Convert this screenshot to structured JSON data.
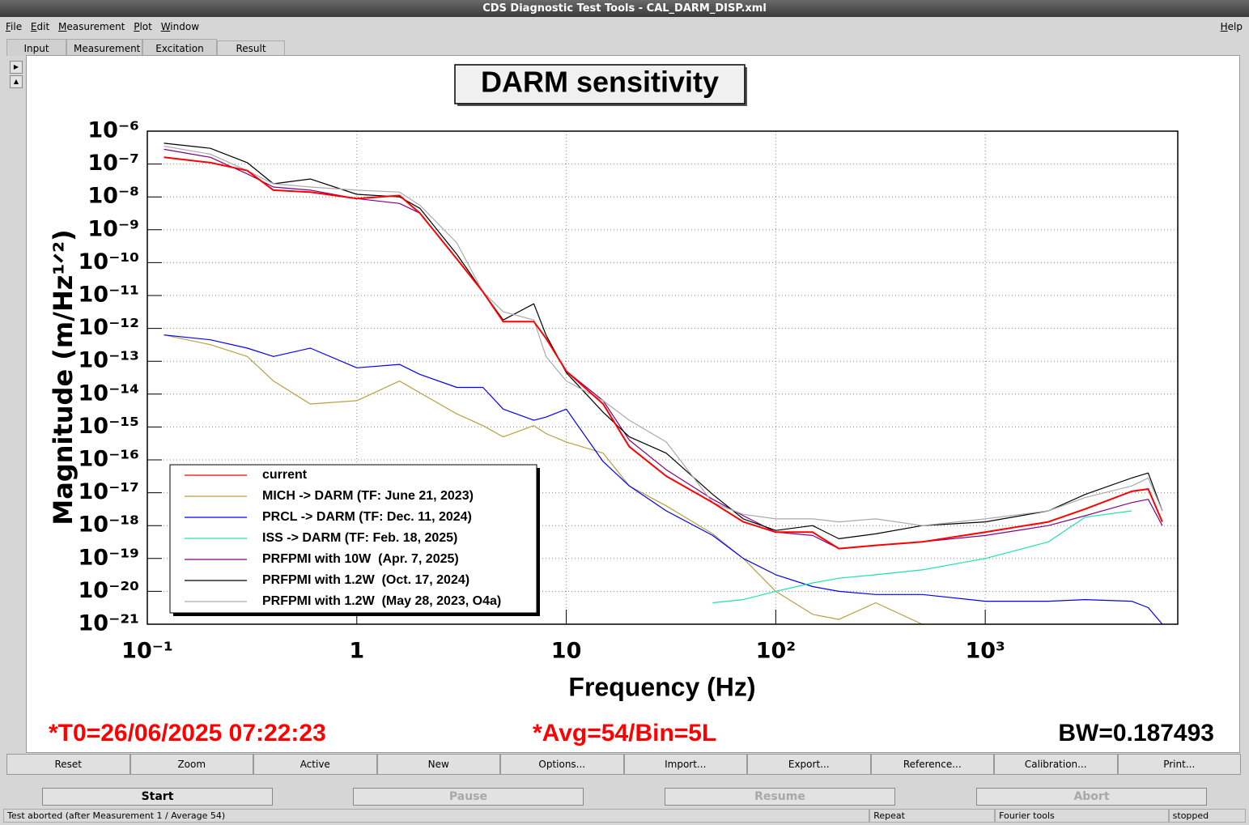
{
  "window": {
    "title": "CDS Diagnostic Test Tools - CAL_DARM_DISP.xml"
  },
  "menu": [
    "File",
    "Edit",
    "Measurement",
    "Plot",
    "Window"
  ],
  "help": "Help",
  "tabs": [
    "Input",
    "Measurement",
    "Excitation",
    "Result"
  ],
  "chart_data": {
    "type": "line",
    "title": "DARM sensitivity",
    "xlabel": "Frequency (Hz)",
    "ylabel": "Magnitude (m/Hz¹ᐟ²)",
    "xscale": "log",
    "yscale": "log",
    "grid": true,
    "legend": "lower left",
    "xlim": [
      0.1,
      8300
    ],
    "ylim": [
      1e-21,
      1e-06
    ],
    "xticks": [
      {
        "value": 0.1,
        "label": "10⁻¹"
      },
      1,
      10,
      {
        "value": 100,
        "label": "10²"
      },
      {
        "value": 1000,
        "label": "10³"
      }
    ],
    "yticks": [
      {
        "value": 1e-06,
        "label": "10⁻⁶"
      },
      {
        "value": 1e-07,
        "label": "10⁻⁷"
      },
      {
        "value": 1e-08,
        "label": "10⁻⁸"
      },
      {
        "value": 1e-09,
        "label": "10⁻⁹"
      },
      {
        "value": 1e-10,
        "label": "10⁻¹⁰"
      },
      {
        "value": 1e-11,
        "label": "10⁻¹¹"
      },
      {
        "value": 1e-12,
        "label": "10⁻¹²"
      },
      {
        "value": 1e-13,
        "label": "10⁻¹³"
      },
      {
        "value": 1e-14,
        "label": "10⁻¹⁴"
      },
      {
        "value": 1e-15,
        "label": "10⁻¹⁵"
      },
      {
        "value": 1e-16,
        "label": "10⁻¹⁶"
      },
      {
        "value": 1e-17,
        "label": "10⁻¹⁷"
      },
      {
        "value": 1e-18,
        "label": "10⁻¹⁸"
      },
      {
        "value": 1e-19,
        "label": "10⁻¹⁹"
      },
      {
        "value": 1e-20,
        "label": "10⁻²⁰"
      },
      {
        "value": 1e-21,
        "label": "10⁻²¹"
      }
    ],
    "x": [
      0.12,
      0.2,
      0.3,
      0.4,
      0.6,
      1,
      1.6,
      2,
      3,
      4,
      5,
      7,
      8,
      10,
      15,
      20,
      30,
      50,
      70,
      100,
      150,
      200,
      300,
      500,
      1000,
      2000,
      3000,
      5000,
      6000,
      7000
    ],
    "series": [
      {
        "name": "current",
        "color": "#ff0000",
        "values": [
          1.6e-07,
          1.1e-07,
          6.3e-08,
          1.6e-08,
          1.4e-08,
          8.9e-09,
          1.1e-08,
          3.2e-09,
          1.3e-10,
          1.3e-11,
          1.6e-12,
          1.6e-12,
          5e-13,
          5e-14,
          5e-15,
          2.5e-16,
          3.2e-17,
          5e-18,
          1.3e-18,
          6.3e-19,
          6.3e-19,
          2e-19,
          2.5e-19,
          3.2e-19,
          6.3e-19,
          1.3e-18,
          3.2e-18,
          1.1e-17,
          1.3e-17,
          1.3e-18
        ]
      },
      {
        "name": "MICH -> DARM (TF: June 21, 2023)",
        "color": "#b8a040",
        "values": [
          6.3e-13,
          3.2e-13,
          1.4e-13,
          2.5e-14,
          5e-15,
          6.3e-15,
          2.5e-14,
          1.1e-14,
          2.5e-15,
          1.1e-15,
          5e-16,
          1.1e-15,
          6.3e-16,
          3.5e-16,
          1.6e-16,
          1.6e-17,
          4e-18,
          5.6e-19,
          1e-19,
          1e-20,
          2e-21,
          1.4e-21,
          4.5e-21,
          1e-21,
          null,
          null,
          null,
          null,
          null,
          null
        ]
      },
      {
        "name": "PRCL -> DARM (TF: Dec. 11, 2024)",
        "color": "#0000ff",
        "values": [
          6.3e-13,
          4.5e-13,
          2.5e-13,
          1.4e-13,
          2.5e-13,
          6.3e-14,
          8e-14,
          4e-14,
          1.6e-14,
          1.6e-14,
          3.5e-15,
          1.6e-15,
          2e-15,
          3.5e-15,
          8.9e-17,
          1.6e-17,
          2.8e-18,
          5e-19,
          1e-19,
          3.2e-20,
          1.4e-20,
          1e-20,
          8e-21,
          8e-21,
          5e-21,
          5e-21,
          5.6e-21,
          5e-21,
          3.2e-21,
          1e-21
        ]
      },
      {
        "name": "ISS -> DARM (TF: Feb. 18, 2025)",
        "color": "#20e0b0",
        "values": [
          null,
          null,
          null,
          null,
          null,
          null,
          null,
          null,
          null,
          null,
          null,
          null,
          null,
          null,
          null,
          null,
          null,
          4.5e-21,
          5.6e-21,
          1e-20,
          1.8e-20,
          2.5e-20,
          3.2e-20,
          4.5e-20,
          1e-19,
          3.2e-19,
          1.8e-18,
          2.8e-18,
          null,
          null
        ]
      },
      {
        "name": "PRFPMI with 10W  (Apr. 7, 2025)",
        "color": "#800080",
        "values": [
          2.8e-07,
          1.6e-07,
          5e-08,
          2e-08,
          1.6e-08,
          8.9e-09,
          6.3e-09,
          3.2e-09,
          1.3e-10,
          1.3e-11,
          1.6e-12,
          1.6e-12,
          5e-13,
          5e-14,
          6.3e-15,
          4e-16,
          5e-17,
          6.3e-18,
          2e-18,
          6.3e-19,
          5e-19,
          2e-19,
          2.5e-19,
          3.2e-19,
          5e-19,
          1e-18,
          2e-18,
          5e-18,
          6.3e-18,
          1e-18
        ]
      },
      {
        "name": "PRFPMI with 1.2W  (Oct. 17, 2024)",
        "color": "#000000",
        "values": [
          4.3e-07,
          3e-07,
          1.1e-07,
          2.5e-08,
          3.5e-08,
          1.2e-08,
          1e-08,
          4.5e-09,
          1.8e-10,
          1.3e-11,
          1.8e-12,
          5.6e-12,
          6.3e-13,
          4.5e-14,
          2.8e-15,
          5e-16,
          1.6e-16,
          8.9e-18,
          1.6e-18,
          7.1e-19,
          1e-18,
          4e-19,
          5.6e-19,
          1e-18,
          1.3e-18,
          2.8e-18,
          8.9e-18,
          2.8e-17,
          4e-17,
          2.8e-18
        ]
      },
      {
        "name": "PRFPMI with 1.2W  (May 28, 2023, O4a)",
        "color": "#aaaaaa",
        "values": [
          3.5e-07,
          2e-07,
          6.3e-08,
          2.5e-08,
          2e-08,
          1.6e-08,
          1.4e-08,
          5.6e-09,
          4e-10,
          1.3e-11,
          3.2e-12,
          1.8e-12,
          1.4e-13,
          2.5e-14,
          6.3e-15,
          1.6e-15,
          3.5e-16,
          5e-18,
          2.2e-18,
          1.6e-18,
          1.6e-18,
          1.3e-18,
          1.6e-18,
          1e-18,
          1.6e-18,
          2.8e-18,
          7.1e-18,
          1.6e-17,
          2.8e-17,
          2.8e-18
        ]
      }
    ]
  },
  "info": {
    "t0": "*T0=26/06/2025 07:22:23",
    "avg": "*Avg=54/Bin=5L",
    "bw": "BW=0.187493"
  },
  "toolbar": [
    "Reset",
    "Zoom",
    "Active",
    "New",
    "Options...",
    "Import...",
    "Export...",
    "Reference...",
    "Calibration...",
    "Print..."
  ],
  "controls": [
    "Start",
    "Pause",
    "Resume",
    "Abort"
  ],
  "status": [
    "Test aborted (after Measurement 1 / Average 54)",
    "Repeat",
    "Fourier tools",
    "stopped"
  ]
}
